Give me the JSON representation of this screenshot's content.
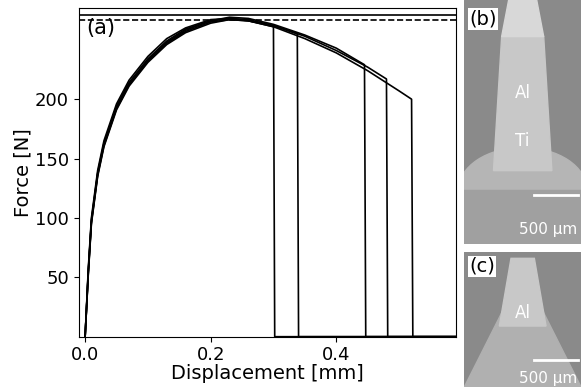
{
  "chart_data": {
    "type": "line",
    "panel_label": "(a)",
    "x_label": "Displacement [mm]",
    "y_label": "Force [N]",
    "xlim": [
      -0.01,
      0.59
    ],
    "xticks": [
      {
        "value": 0,
        "label": "0.0"
      },
      0.2,
      0.4
    ],
    "ylim": [
      0,
      277
    ],
    "yticks": [
      50,
      100,
      150,
      200
    ],
    "reference_lines": [
      {
        "value": 271,
        "line_style": "solid",
        "color": "#000000"
      },
      {
        "value": 267,
        "line_style": "dashed",
        "color": "#000000"
      }
    ],
    "series": [
      {
        "color": "#000000",
        "x": [
          0,
          0.005,
          0.01,
          0.02,
          0.03,
          0.05,
          0.07,
          0.1,
          0.13,
          0.16,
          0.2,
          0.23,
          0.26,
          0.3,
          0.302,
          0.59
        ],
        "values": [
          0,
          57,
          100,
          140,
          165,
          196,
          216,
          236,
          251,
          260,
          267,
          268,
          266,
          261,
          0,
          0
        ]
      },
      {
        "color": "#000000",
        "x": [
          0,
          0.005,
          0.01,
          0.02,
          0.03,
          0.05,
          0.07,
          0.1,
          0.13,
          0.16,
          0.2,
          0.23,
          0.26,
          0.3,
          0.338,
          0.34,
          0.59
        ],
        "values": [
          0,
          55,
          98,
          138,
          163,
          194,
          214,
          234,
          249,
          259,
          266,
          268,
          267,
          262,
          255,
          0,
          0
        ]
      },
      {
        "color": "#000000",
        "x": [
          0,
          0.005,
          0.01,
          0.02,
          0.03,
          0.05,
          0.07,
          0.1,
          0.13,
          0.16,
          0.2,
          0.23,
          0.26,
          0.3,
          0.35,
          0.4,
          0.445,
          0.447,
          0.59
        ],
        "values": [
          0,
          54,
          97,
          137,
          162,
          193,
          213,
          233,
          248,
          258,
          266,
          269,
          268,
          263,
          254,
          243,
          229,
          0,
          0
        ]
      },
      {
        "color": "#000000",
        "x": [
          0,
          0.005,
          0.01,
          0.02,
          0.03,
          0.05,
          0.07,
          0.1,
          0.13,
          0.16,
          0.2,
          0.23,
          0.26,
          0.3,
          0.35,
          0.4,
          0.45,
          0.48,
          0.482,
          0.59
        ],
        "values": [
          0,
          53,
          96,
          136,
          161,
          192,
          212,
          232,
          247,
          257,
          265,
          267,
          266,
          262,
          253,
          241,
          227,
          217,
          0,
          0
        ]
      },
      {
        "color": "#000000",
        "x": [
          0,
          0.005,
          0.01,
          0.02,
          0.03,
          0.05,
          0.07,
          0.1,
          0.13,
          0.16,
          0.2,
          0.23,
          0.26,
          0.3,
          0.35,
          0.4,
          0.45,
          0.5,
          0.52,
          0.522,
          0.59
        ],
        "values": [
          0,
          52,
          95,
          135,
          160,
          191,
          211,
          231,
          246,
          256,
          264,
          267,
          266,
          261,
          251,
          239,
          224,
          207,
          200,
          0,
          0
        ]
      }
    ]
  },
  "images": [
    {
      "panel_label": "(b)",
      "labels": [
        "Al",
        "Ti"
      ],
      "scale_bar": "500 µm"
    },
    {
      "panel_label": "(c)",
      "labels": [
        "Al"
      ],
      "scale_bar": "500 µm"
    }
  ]
}
